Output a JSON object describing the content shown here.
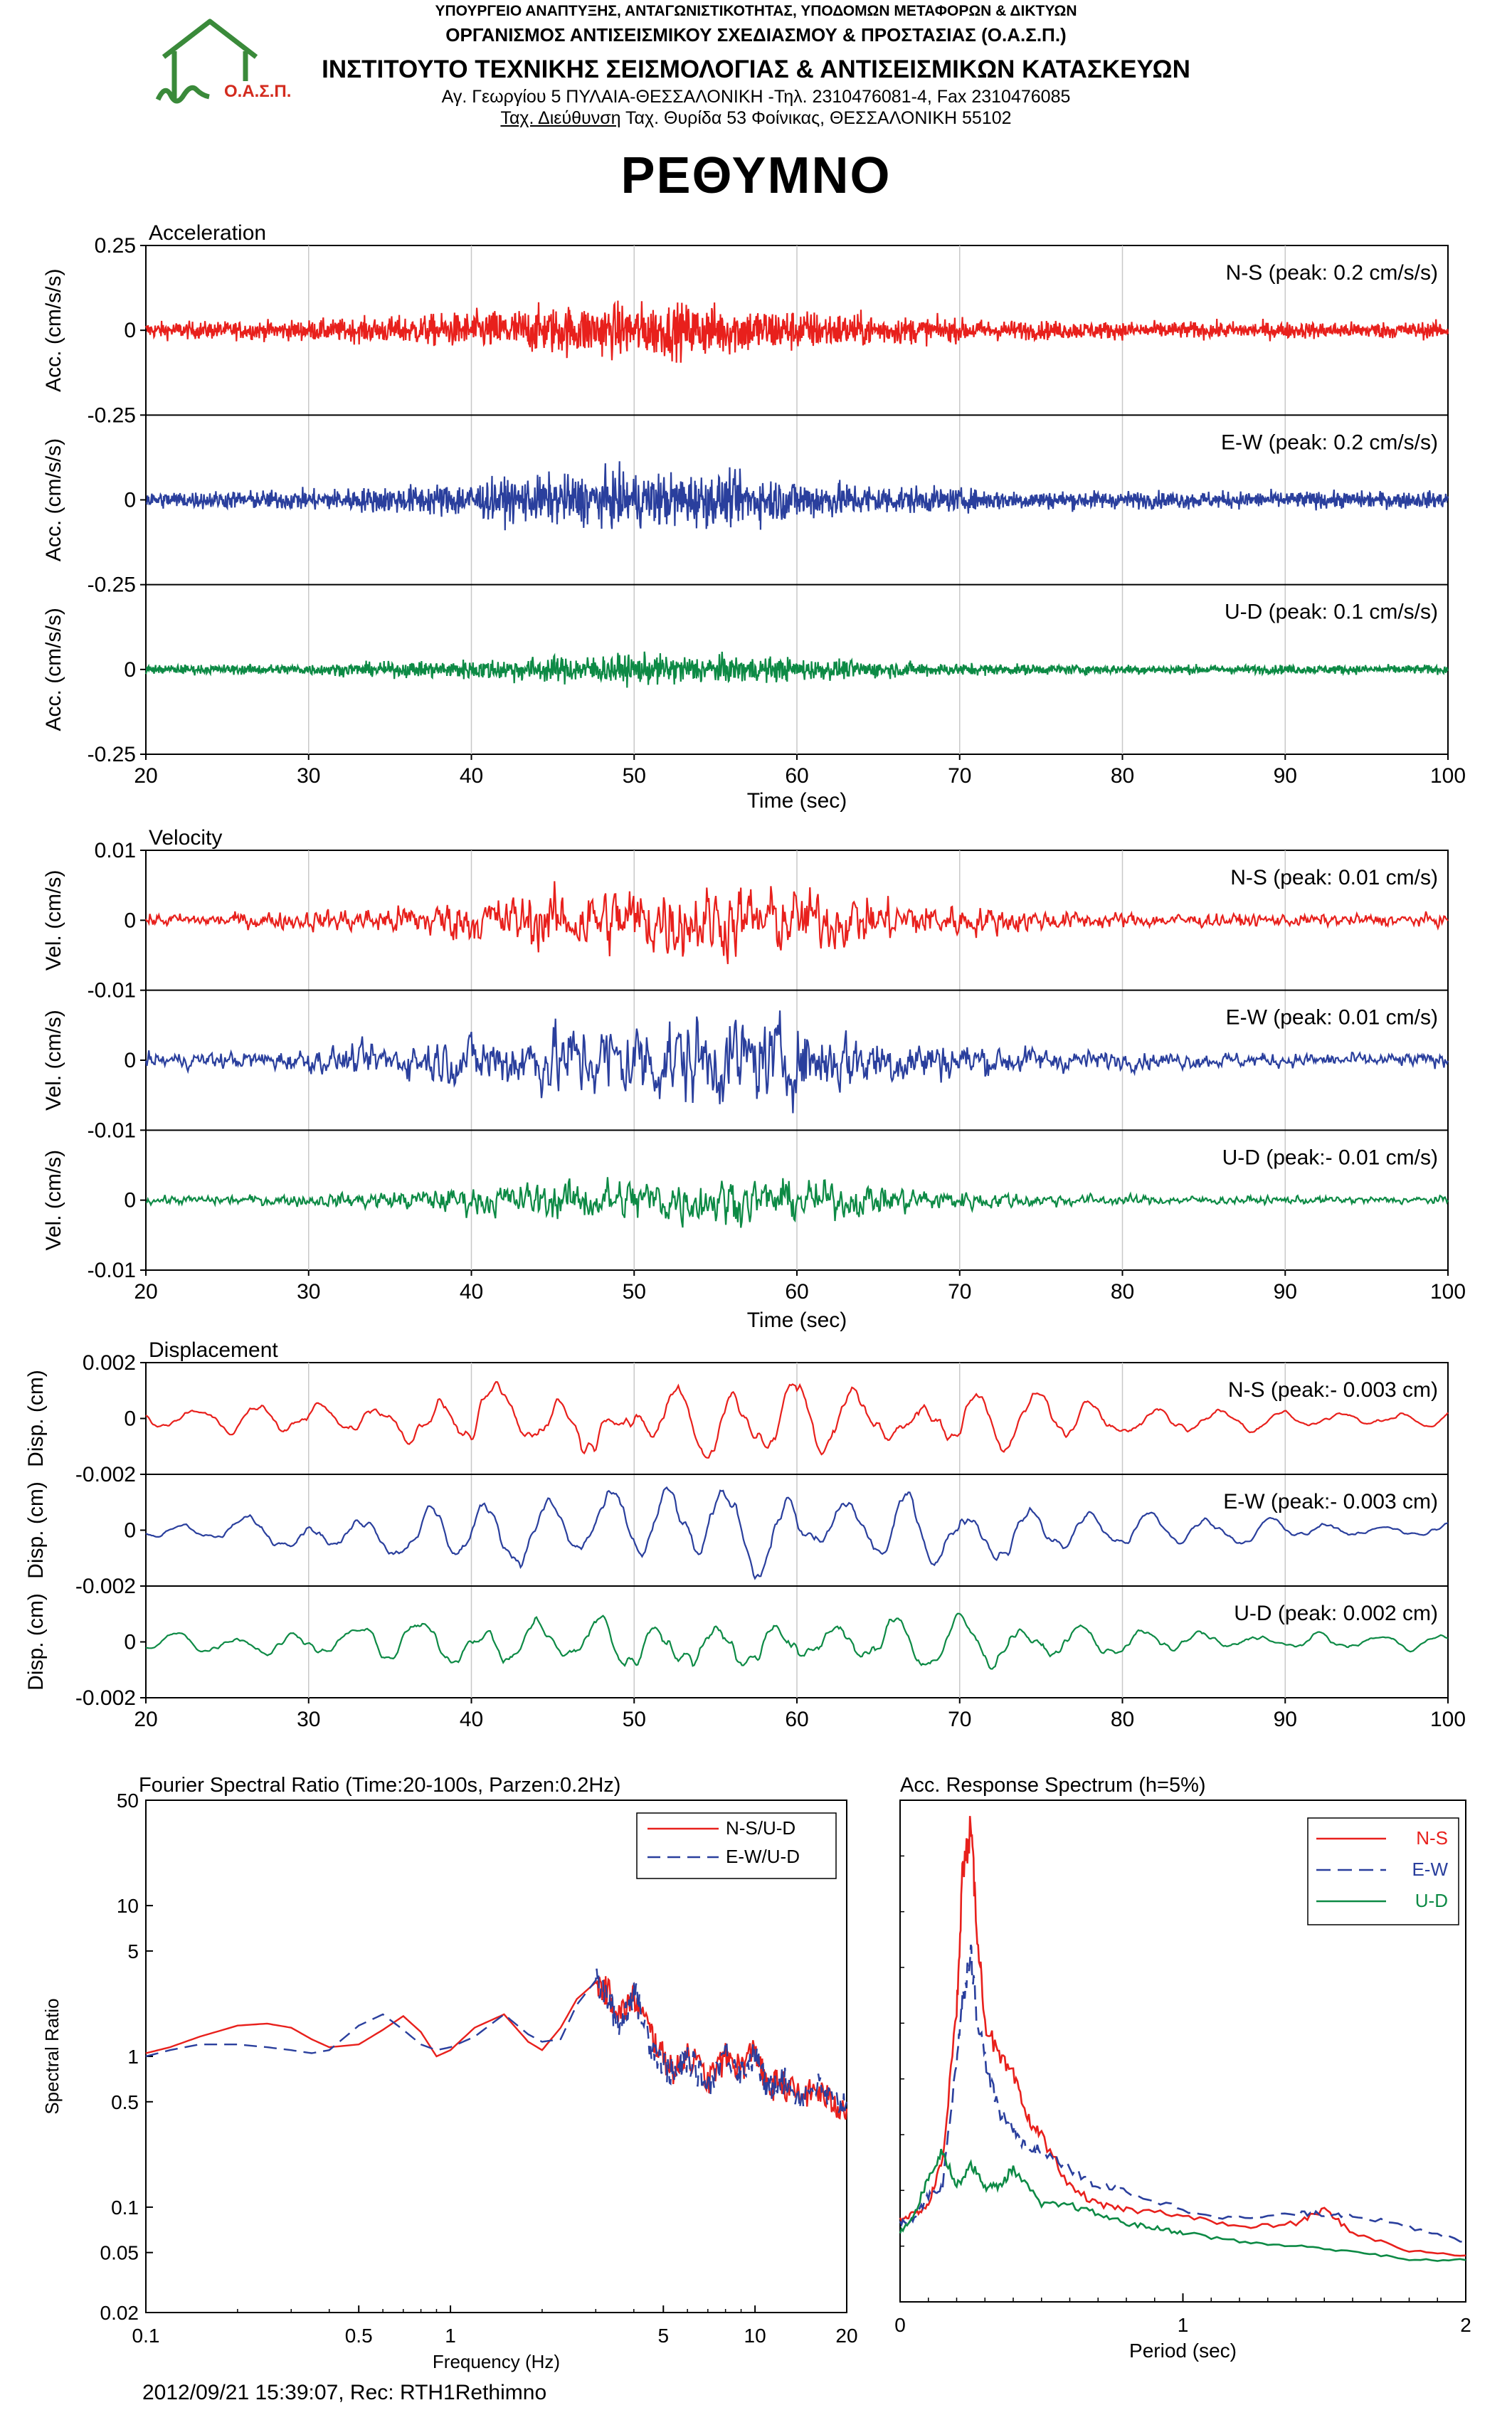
{
  "header": {
    "ministry": "ΥΠΟΥΡΓΕΙΟ ΑΝΑΠΤΥΞΗΣ, ΑΝΤΑΓΩΝΙΣΤΙΚΟΤΗΤΑΣ, ΥΠΟΔΟΜΩΝ ΜΕΤΑΦΟΡΩΝ & ΔΙΚΤΥΩΝ",
    "organization": "ΟΡΓΑΝΙΣΜΟΣ ΑΝΤΙΣΕΙΣΜΙΚΟΥ ΣΧΕΔΙΑΣΜΟΥ & ΠΡΟΣΤΑΣΙΑΣ (Ο.Α.Σ.Π.)",
    "institute": "ΙΝΣΤΙΤΟΥΤΟ ΤΕΧΝΙΚΗΣ ΣΕΙΣΜΟΛΟΓΙΑΣ & ΑΝΤΙΣΕΙΣΜΙΚΩΝ ΚΑΤΑΣΚΕΥΩΝ",
    "address": "Αγ. Γεωργίου 5 ΠΥΛΑΙΑ-ΘΕΣΣΑΛΟΝΙΚΗ -Τηλ. 2310476081-4, Fax 2310476085",
    "postal_label": "Ταχ. Διεύθυνση",
    "postal_address": "Ταχ. Θυρίδα 53 Φοίνικας, ΘΕΣΣΑΛΟΝΙΚΗ 55102",
    "logo_text": "Ο.Α.Σ.Π.",
    "station": "ΡΕΘΥΜΝΟ"
  },
  "footer": "2012/09/21 15:39:07, Rec: RTH1Rethimno",
  "colors": {
    "ns": "#e8201c",
    "ew": "#2a3f9d",
    "ud": "#0d8a45",
    "logo": "#3a8a3a",
    "logo_text": "#d32b1e"
  },
  "chart_data": [
    {
      "type": "line",
      "title": "Acceleration",
      "xlabel": "Time (sec)",
      "ylabel": "Acc. (cm/s/s)",
      "xlim": [
        20,
        100
      ],
      "ylim": [
        -0.25,
        0.25
      ],
      "xticks": [
        "20",
        "30",
        "40",
        "50",
        "60",
        "70",
        "80",
        "90",
        "100"
      ],
      "yticks": [
        "0.25",
        "0",
        "-0.25"
      ],
      "grid": true,
      "series": [
        {
          "name": "N-S",
          "annotation": "N-S (peak: 0.2 cm/s/s)",
          "peak": 0.2
        },
        {
          "name": "E-W",
          "annotation": "E-W (peak: 0.2 cm/s/s)",
          "peak": 0.2
        },
        {
          "name": "U-D",
          "annotation": "U-D (peak: 0.1 cm/s/s)",
          "peak": 0.1
        }
      ]
    },
    {
      "type": "line",
      "title": "Velocity",
      "xlabel": "Time (sec)",
      "ylabel": "Vel. (cm/s)",
      "xlim": [
        20,
        100
      ],
      "ylim": [
        -0.01,
        0.01
      ],
      "xticks": [
        "20",
        "30",
        "40",
        "50",
        "60",
        "70",
        "80",
        "90",
        "100"
      ],
      "yticks": [
        "0.01",
        "0",
        "-0.01"
      ],
      "grid": true,
      "series": [
        {
          "name": "N-S",
          "annotation": "N-S (peak: 0.01 cm/s)",
          "peak": 0.01
        },
        {
          "name": "E-W",
          "annotation": "E-W (peak: 0.01 cm/s)",
          "peak": 0.01
        },
        {
          "name": "U-D",
          "annotation": "U-D (peak:- 0.01 cm/s)",
          "peak": -0.01
        }
      ]
    },
    {
      "type": "line",
      "title": "Displacement",
      "xlabel": "",
      "ylabel": "Disp. (cm)",
      "xlim": [
        20,
        100
      ],
      "ylim": [
        -0.002,
        0.002
      ],
      "xticks": [
        "20",
        "30",
        "40",
        "50",
        "60",
        "70",
        "80",
        "90",
        "100"
      ],
      "yticks": [
        "0.002",
        "0",
        "-0.002"
      ],
      "grid": true,
      "series": [
        {
          "name": "N-S",
          "annotation": "N-S (peak:- 0.003 cm)",
          "peak": -0.003
        },
        {
          "name": "E-W",
          "annotation": "E-W (peak:- 0.003 cm)",
          "peak": -0.003
        },
        {
          "name": "U-D",
          "annotation": "U-D (peak: 0.002 cm)",
          "peak": 0.002
        }
      ]
    },
    {
      "type": "line",
      "title": "Fourier Spectral Ratio (Time:20-100s, Parzen:0.2Hz)",
      "xlabel": "Frequency (Hz)",
      "ylabel": "Spectral Ratio",
      "xscale": "log",
      "yscale": "log",
      "xlim": [
        0.1,
        20
      ],
      "ylim": [
        0.02,
        50
      ],
      "xticks": [
        "0.1",
        "0.5",
        "1",
        "5",
        "10",
        "20"
      ],
      "yticks": [
        "50",
        "10",
        "5",
        "1",
        "0.5",
        "0.1",
        "0.05",
        "0.02"
      ],
      "legend": "top-right",
      "series": [
        {
          "name": "N-S/U-D",
          "x": [
            0.1,
            0.12,
            0.15,
            0.2,
            0.25,
            0.3,
            0.35,
            0.4,
            0.5,
            0.6,
            0.7,
            0.8,
            0.9,
            1,
            1.2,
            1.5,
            1.8,
            2,
            2.3,
            2.6,
            3,
            3.3,
            3.6,
            4,
            4.5,
            5,
            5.5,
            6,
            7,
            8,
            9,
            10,
            11,
            12,
            14,
            16,
            18,
            20
          ],
          "values": [
            1.05,
            1.15,
            1.35,
            1.6,
            1.65,
            1.55,
            1.3,
            1.15,
            1.2,
            1.5,
            1.85,
            1.45,
            1.0,
            1.1,
            1.55,
            1.9,
            1.25,
            1.1,
            1.55,
            2.4,
            3.1,
            2.7,
            1.9,
            2.5,
            1.5,
            1.0,
            0.8,
            1.1,
            0.7,
            1.0,
            0.85,
            1.15,
            0.6,
            0.7,
            0.55,
            0.6,
            0.5,
            0.45
          ]
        },
        {
          "name": "E-W/U-D",
          "x": [
            0.1,
            0.12,
            0.15,
            0.2,
            0.25,
            0.3,
            0.35,
            0.4,
            0.5,
            0.6,
            0.7,
            0.8,
            0.9,
            1,
            1.2,
            1.5,
            1.8,
            2,
            2.3,
            2.6,
            3,
            3.3,
            3.6,
            4,
            4.5,
            5,
            5.5,
            6,
            7,
            8,
            9,
            10,
            11,
            12,
            14,
            16,
            18,
            20
          ],
          "values": [
            1.0,
            1.1,
            1.2,
            1.2,
            1.15,
            1.1,
            1.05,
            1.1,
            1.6,
            1.9,
            1.5,
            1.2,
            1.1,
            1.15,
            1.35,
            1.9,
            1.4,
            1.25,
            1.3,
            2.2,
            3.2,
            2.4,
            1.6,
            2.8,
            1.3,
            0.9,
            0.75,
            1.0,
            0.65,
            1.1,
            0.8,
            1.05,
            0.6,
            0.75,
            0.55,
            0.65,
            0.5,
            0.5
          ]
        }
      ]
    },
    {
      "type": "line",
      "title": "Acc. Response Spectrum (h=5%)",
      "xlabel": "Period (sec)",
      "ylabel": "",
      "xlim": [
        0,
        2
      ],
      "xticks": [
        "0",
        "1",
        "2"
      ],
      "legend": "top-right",
      "series": [
        {
          "name": "N-S",
          "x": [
            0,
            0.05,
            0.1,
            0.15,
            0.2,
            0.22,
            0.25,
            0.27,
            0.3,
            0.35,
            0.4,
            0.45,
            0.5,
            0.6,
            0.7,
            0.8,
            1.0,
            1.2,
            1.4,
            1.5,
            1.6,
            1.8,
            2.0
          ],
          "values": [
            0.15,
            0.16,
            0.18,
            0.28,
            0.6,
            0.9,
            1.0,
            0.8,
            0.58,
            0.5,
            0.46,
            0.37,
            0.33,
            0.22,
            0.18,
            0.17,
            0.16,
            0.13,
            0.14,
            0.17,
            0.12,
            0.08,
            0.07
          ]
        },
        {
          "name": "E-W",
          "x": [
            0,
            0.05,
            0.1,
            0.15,
            0.2,
            0.22,
            0.25,
            0.27,
            0.3,
            0.35,
            0.4,
            0.45,
            0.5,
            0.6,
            0.7,
            0.8,
            1.0,
            1.2,
            1.4,
            1.5,
            1.6,
            1.8,
            2.0
          ],
          "values": [
            0.14,
            0.15,
            0.2,
            0.22,
            0.5,
            0.62,
            0.74,
            0.6,
            0.5,
            0.38,
            0.35,
            0.3,
            0.3,
            0.26,
            0.22,
            0.21,
            0.17,
            0.15,
            0.16,
            0.16,
            0.16,
            0.13,
            0.1
          ]
        },
        {
          "name": "U-D",
          "x": [
            0,
            0.05,
            0.1,
            0.15,
            0.2,
            0.25,
            0.3,
            0.35,
            0.4,
            0.5,
            0.6,
            0.7,
            0.8,
            0.9,
            1.0,
            1.2,
            1.4,
            1.6,
            1.8,
            2.0
          ],
          "values": [
            0.12,
            0.16,
            0.24,
            0.3,
            0.22,
            0.27,
            0.22,
            0.22,
            0.26,
            0.18,
            0.18,
            0.16,
            0.14,
            0.13,
            0.12,
            0.1,
            0.09,
            0.08,
            0.06,
            0.06
          ]
        }
      ]
    }
  ]
}
